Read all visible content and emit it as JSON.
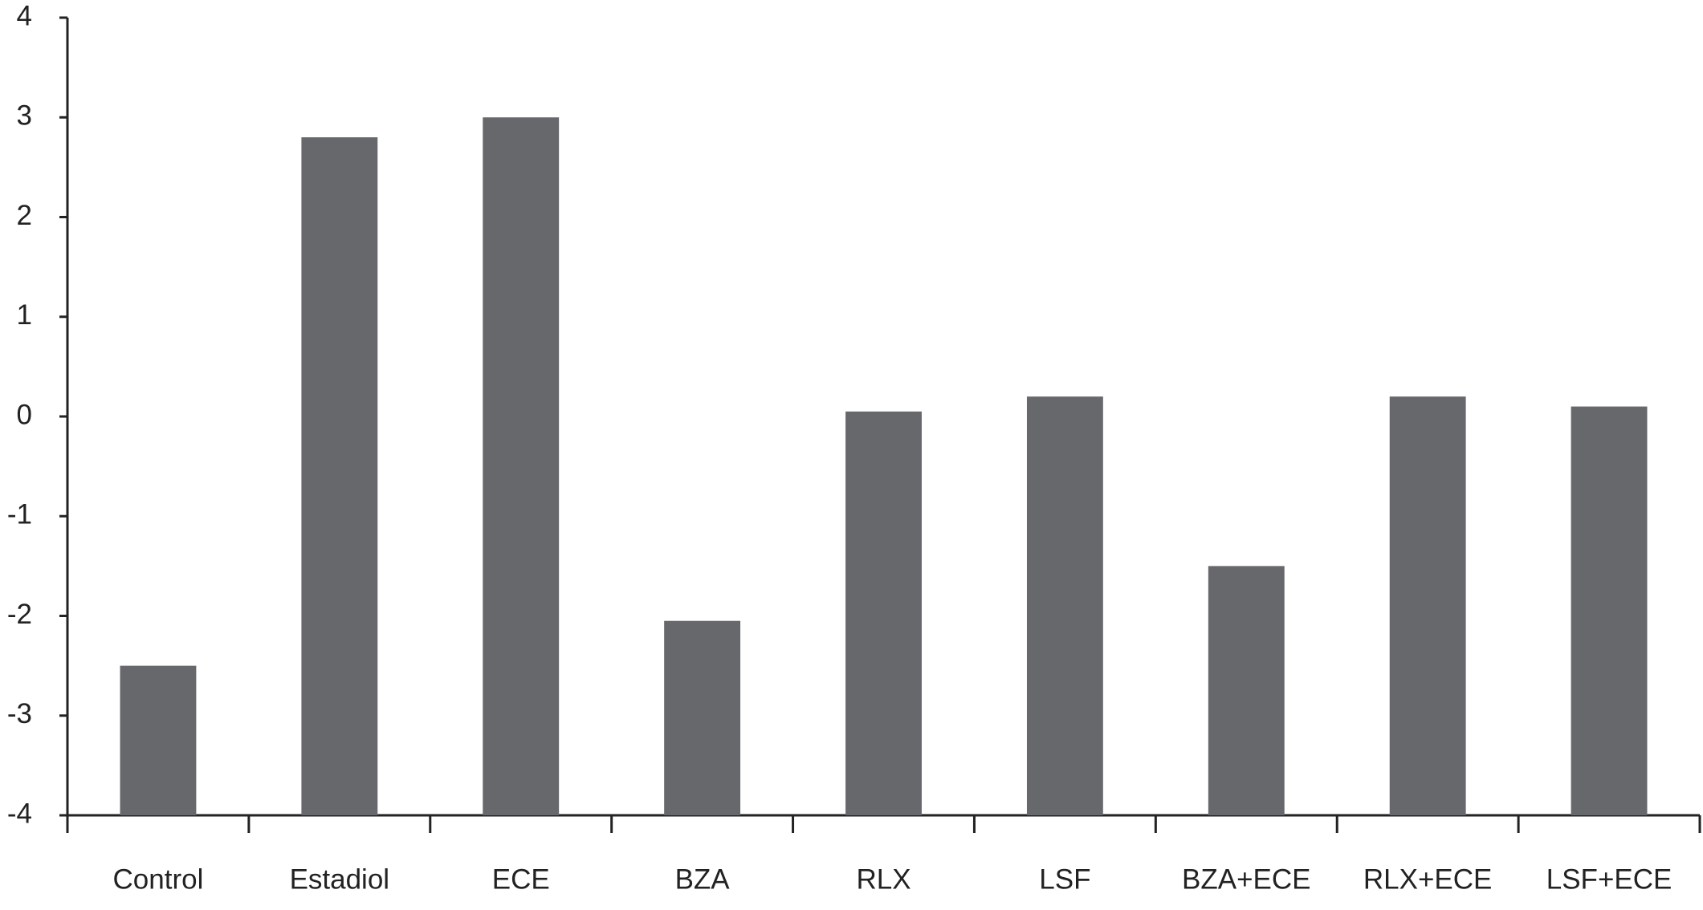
{
  "chart_data": {
    "type": "bar",
    "categories": [
      "Control",
      "Estadiol",
      "ECE",
      "BZA",
      "RLX",
      "LSF",
      "BZA+ECE",
      "RLX+ECE",
      "LSF+ECE"
    ],
    "values": [
      -2.5,
      2.8,
      3.0,
      -2.05,
      0.05,
      0.2,
      -1.5,
      0.2,
      0.1
    ],
    "color": "#67686c",
    "ylim": [
      -4,
      4
    ],
    "yticks": [
      -4,
      -3,
      -2,
      -1,
      0,
      1,
      2,
      3,
      4
    ],
    "grid": false
  }
}
